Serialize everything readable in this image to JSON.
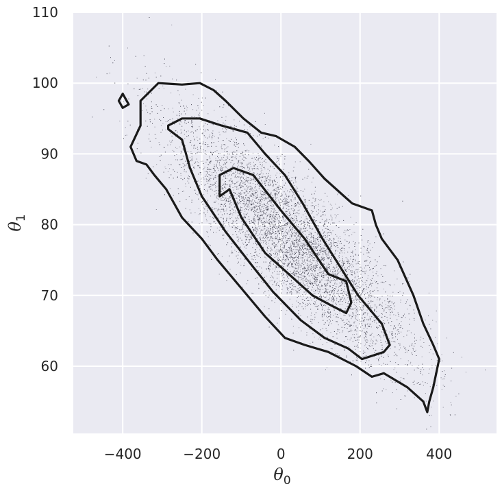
{
  "chart_data": {
    "type": "scatter",
    "subtype": "scatter with density contours",
    "title": "",
    "xlabel": {
      "symbol": "θ",
      "subscript": "0"
    },
    "ylabel": {
      "symbol": "θ",
      "subscript": "1"
    },
    "xlim": [
      -525,
      545
    ],
    "ylim": [
      50.5,
      110
    ],
    "x_ticks": [
      -400,
      -200,
      0,
      200,
      400
    ],
    "x_tick_labels": [
      "−400",
      "−200",
      "0",
      "200",
      "400"
    ],
    "y_ticks": [
      60,
      70,
      80,
      90,
      100,
      110
    ],
    "y_tick_labels": [
      "60",
      "70",
      "80",
      "90",
      "100",
      "110"
    ],
    "grid": true,
    "colors": {
      "background": "#EAEAF2",
      "grid": "#FFFFFF",
      "contour": "#1A1A1A",
      "points": "#2B2B3A"
    },
    "scatter_distribution": {
      "center": [
        20,
        78
      ],
      "sd_x": 150,
      "sd_y": 8.5,
      "correlation": -0.85
    },
    "contours": [
      {
        "level": "inner",
        "points": [
          [
            -155,
            87
          ],
          [
            -120,
            88
          ],
          [
            -70,
            87
          ],
          [
            0,
            82
          ],
          [
            60,
            78
          ],
          [
            120,
            73
          ],
          [
            165,
            72
          ],
          [
            178,
            69
          ],
          [
            165,
            67.5
          ],
          [
            130,
            68.5
          ],
          [
            80,
            70
          ],
          [
            20,
            73
          ],
          [
            -40,
            76
          ],
          [
            -100,
            81
          ],
          [
            -130,
            85
          ],
          [
            -155,
            84
          ]
        ]
      },
      {
        "level": "middle",
        "points": [
          [
            -285,
            94
          ],
          [
            -250,
            95
          ],
          [
            -205,
            95
          ],
          [
            -150,
            94
          ],
          [
            -85,
            93
          ],
          [
            -40,
            90
          ],
          [
            10,
            87
          ],
          [
            55,
            83
          ],
          [
            105,
            78
          ],
          [
            150,
            74
          ],
          [
            195,
            70
          ],
          [
            255,
            66
          ],
          [
            275,
            63
          ],
          [
            260,
            62
          ],
          [
            205,
            61
          ],
          [
            170,
            62.5
          ],
          [
            110,
            64
          ],
          [
            50,
            66.5
          ],
          [
            -20,
            70.5
          ],
          [
            -70,
            74
          ],
          [
            -140,
            79
          ],
          [
            -200,
            84
          ],
          [
            -230,
            88
          ],
          [
            -250,
            92
          ],
          [
            -285,
            93.5
          ]
        ]
      },
      {
        "level": "outer",
        "points": [
          [
            -355,
            97.5
          ],
          [
            -310,
            100
          ],
          [
            -250,
            99.8
          ],
          [
            -205,
            100
          ],
          [
            -170,
            99
          ],
          [
            -140,
            97.5
          ],
          [
            -95,
            95
          ],
          [
            -50,
            93
          ],
          [
            -12,
            92.5
          ],
          [
            35,
            91
          ],
          [
            70,
            89
          ],
          [
            110,
            86.5
          ],
          [
            140,
            85
          ],
          [
            180,
            83
          ],
          [
            230,
            82
          ],
          [
            240,
            80
          ],
          [
            255,
            78
          ],
          [
            295,
            75
          ],
          [
            335,
            70
          ],
          [
            360,
            66
          ],
          [
            385,
            63
          ],
          [
            400,
            61
          ],
          [
            385,
            57
          ],
          [
            375,
            55
          ],
          [
            370,
            53.5
          ],
          [
            360,
            55
          ],
          [
            320,
            57
          ],
          [
            260,
            59
          ],
          [
            230,
            58.5
          ],
          [
            190,
            60
          ],
          [
            120,
            62
          ],
          [
            60,
            63
          ],
          [
            10,
            64
          ],
          [
            -40,
            67
          ],
          [
            -100,
            71
          ],
          [
            -160,
            75
          ],
          [
            -200,
            78
          ],
          [
            -250,
            81
          ],
          [
            -290,
            85
          ],
          [
            -320,
            87
          ],
          [
            -340,
            88.5
          ],
          [
            -365,
            89
          ],
          [
            -380,
            91
          ],
          [
            -355,
            94
          ]
        ]
      },
      {
        "level": "outer-island",
        "points": [
          [
            -410,
            97.5
          ],
          [
            -400,
            96.5
          ],
          [
            -385,
            97
          ],
          [
            -400,
            98.5
          ]
        ]
      }
    ]
  }
}
